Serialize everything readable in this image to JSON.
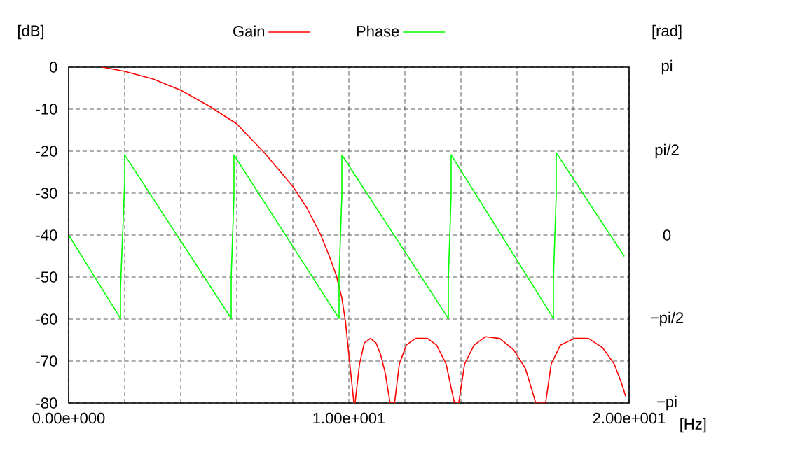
{
  "chart_data": {
    "type": "line",
    "xlabel": "[Hz]",
    "ylabel": "[dB]",
    "y2label": "[rad]",
    "grid": true,
    "legend": "top",
    "xlim": [
      0,
      20
    ],
    "xticks": [
      {
        "value": 0,
        "label": "0.00e+000"
      },
      {
        "value": 2,
        "label": null
      },
      {
        "value": 4,
        "label": null
      },
      {
        "value": 6,
        "label": null
      },
      {
        "value": 8,
        "label": null
      },
      {
        "value": 10,
        "label": "1.00e+001"
      },
      {
        "value": 12,
        "label": null
      },
      {
        "value": 14,
        "label": null
      },
      {
        "value": 16,
        "label": null
      },
      {
        "value": 18,
        "label": null
      },
      {
        "value": 20,
        "label": "2.00e+001"
      }
    ],
    "ylim": [
      -80,
      0
    ],
    "yticks": [
      -80,
      -70,
      -60,
      -50,
      -40,
      -30,
      -20,
      -10,
      0
    ],
    "y2lim": [
      -3.1416,
      3.1416
    ],
    "y2ticks": [
      {
        "value": -3.1416,
        "label": "−pi"
      },
      {
        "value": -1.5708,
        "label": "−pi/2"
      },
      {
        "value": 0,
        "label": "0"
      },
      {
        "value": 1.5708,
        "label": "pi/2"
      },
      {
        "value": 3.1416,
        "label": "pi"
      }
    ],
    "series": [
      {
        "name": "Gain",
        "color": "#ff0000",
        "x": [
          1.2,
          2,
          3,
          4,
          5,
          6,
          7,
          8,
          8.5,
          9,
          9.3,
          9.55,
          9.75,
          9.88,
          10.05,
          10.18,
          10.22,
          10.38,
          10.55,
          10.77,
          10.97,
          11.13,
          11.3,
          11.47,
          11.63,
          11.8,
          12.05,
          12.38,
          12.8,
          13.13,
          13.47,
          13.68,
          13.77,
          13.92,
          14.13,
          14.47,
          14.88,
          15.38,
          15.88,
          16.3,
          16.55,
          16.67,
          17.02,
          17.22,
          17.55,
          18.05,
          18.55,
          19.05,
          19.47,
          19.72,
          19.88
        ],
        "values": [
          0,
          -1,
          -2.8,
          -5.5,
          -9.2,
          -13.5,
          -20.5,
          -28.4,
          -33.5,
          -40,
          -45,
          -49.6,
          -55,
          -60.7,
          -71.7,
          -80,
          -80,
          -70.7,
          -65.7,
          -64.6,
          -65.7,
          -68.4,
          -72.9,
          -80,
          -80,
          -70.7,
          -66.2,
          -64.6,
          -64.6,
          -66.2,
          -70.7,
          -77.3,
          -80,
          -80,
          -70.7,
          -66.2,
          -64.2,
          -64.6,
          -67.3,
          -71.8,
          -77.3,
          -80,
          -80,
          -70.7,
          -66.2,
          -64.6,
          -64.6,
          -66.8,
          -70.7,
          -75.1,
          -78.4
        ]
      },
      {
        "name": "Phase",
        "color": "#00ff00",
        "axis": "y2",
        "x": [
          0,
          1.85,
          1.85,
          2.0,
          2.0,
          5.8,
          5.8,
          5.9,
          5.9,
          9.65,
          9.65,
          9.75,
          9.75,
          13.55,
          13.55,
          13.65,
          13.65,
          17.3,
          17.3,
          17.4,
          17.4,
          19.83
        ],
        "values": [
          0,
          -1.56,
          -1.0,
          1.0,
          1.5,
          -1.56,
          -0.8,
          0.76,
          1.5,
          -1.56,
          -0.8,
          0.76,
          1.5,
          -1.56,
          -0.8,
          0.76,
          1.5,
          -1.56,
          -0.8,
          0.76,
          1.54,
          -0.4
        ]
      }
    ]
  }
}
